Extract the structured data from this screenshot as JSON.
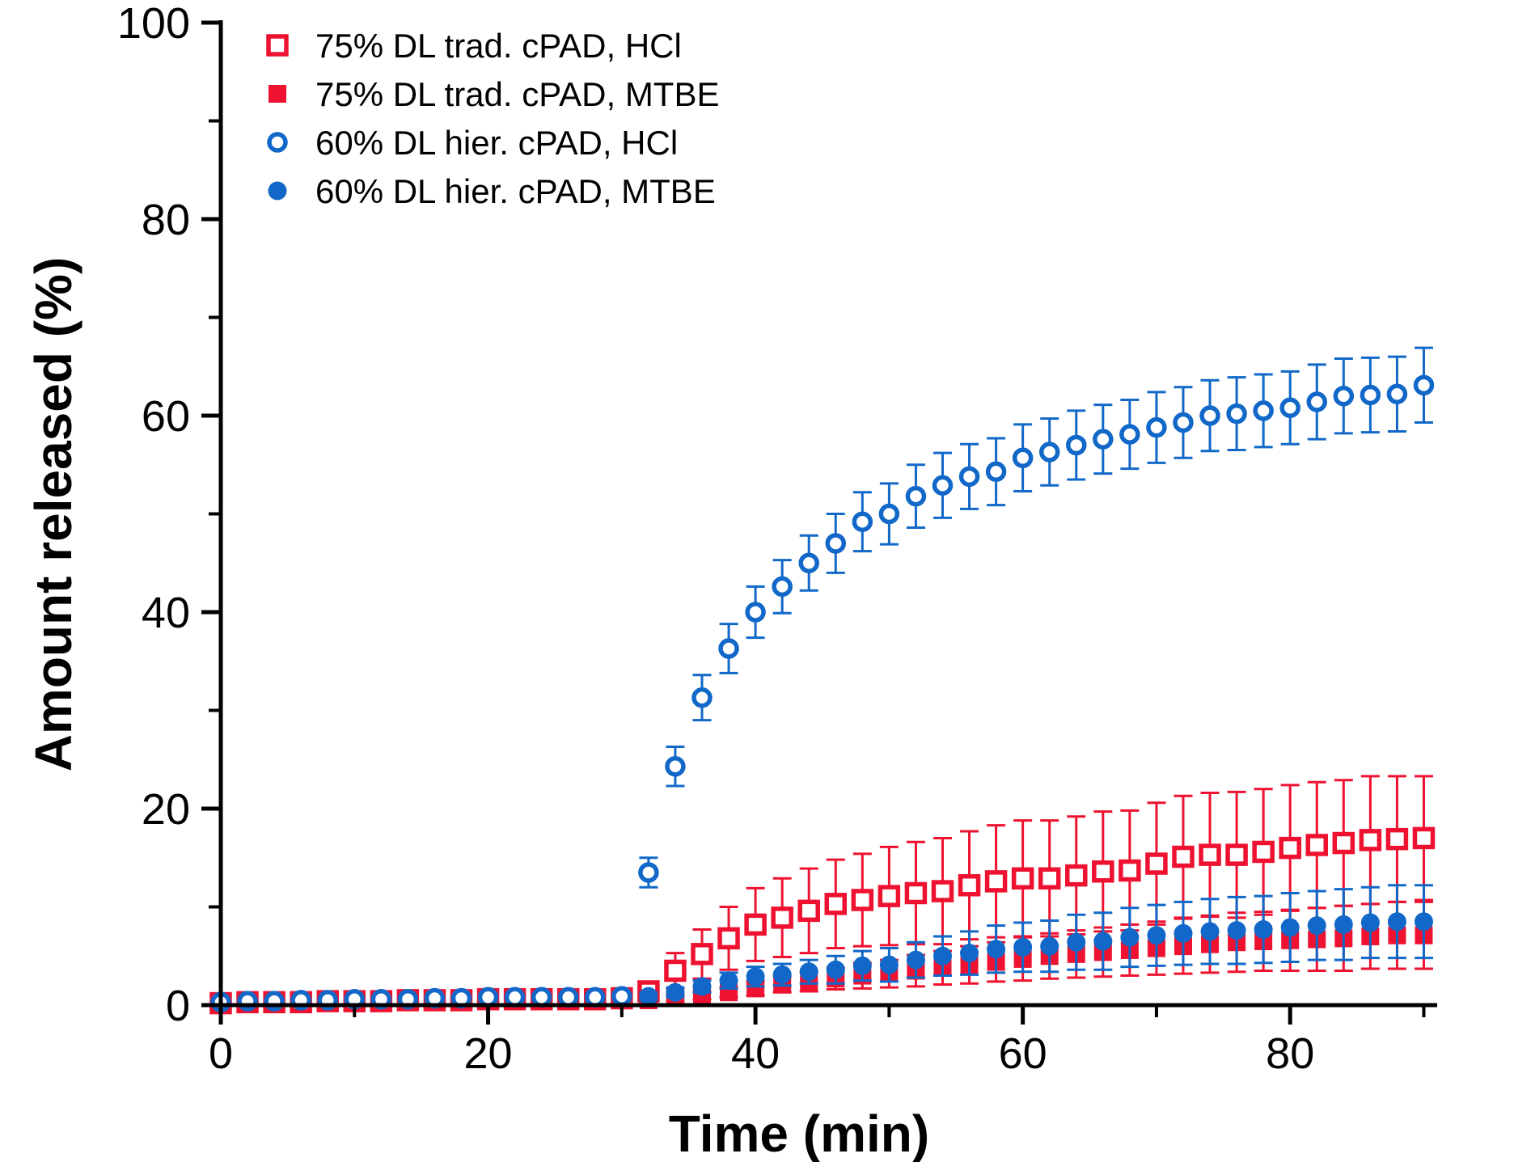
{
  "chart_data": {
    "type": "scatter",
    "title": "",
    "xlabel": "Time (min)",
    "ylabel": "Amount released (%)",
    "xlim": [
      0,
      91
    ],
    "ylim": [
      0,
      100
    ],
    "x_major_ticks": [
      0,
      20,
      40,
      60,
      80
    ],
    "x_minor_ticks": [
      10,
      30,
      50,
      70,
      90
    ],
    "y_major_ticks": [
      0,
      20,
      40,
      60,
      80,
      100
    ],
    "y_minor_ticks": [
      10,
      30,
      50,
      70,
      90
    ],
    "grid": false,
    "legend_position": "top-left-inside",
    "colors": {
      "red": "#ee1230",
      "blue": "#1168c8",
      "axis": "#000000"
    },
    "x": [
      0,
      2,
      4,
      6,
      8,
      10,
      12,
      14,
      16,
      18,
      20,
      22,
      24,
      26,
      28,
      30,
      32,
      34,
      36,
      38,
      40,
      42,
      44,
      46,
      48,
      50,
      52,
      54,
      56,
      58,
      60,
      62,
      64,
      66,
      68,
      70,
      72,
      74,
      76,
      78,
      80,
      82,
      84,
      86,
      88,
      90
    ],
    "series": [
      {
        "name": "75% DL trad. cPAD, HCl",
        "marker": "open-square",
        "color": "#ee1230",
        "values": [
          0.2,
          0.3,
          0.3,
          0.3,
          0.4,
          0.4,
          0.4,
          0.5,
          0.5,
          0.5,
          0.6,
          0.6,
          0.6,
          0.6,
          0.6,
          0.7,
          1.4,
          3.5,
          5.2,
          6.8,
          8.2,
          8.9,
          9.6,
          10.3,
          10.7,
          11.1,
          11.4,
          11.6,
          12.2,
          12.6,
          12.9,
          12.9,
          13.2,
          13.6,
          13.7,
          14.4,
          15.1,
          15.3,
          15.3,
          15.6,
          16.0,
          16.3,
          16.5,
          16.8,
          16.9,
          17.0
        ],
        "errors": [
          0.1,
          0.1,
          0.1,
          0.1,
          0.1,
          0.1,
          0.1,
          0.1,
          0.1,
          0.1,
          0.2,
          0.2,
          0.2,
          0.2,
          0.2,
          0.2,
          0.9,
          1.8,
          2.5,
          3.2,
          3.7,
          4.0,
          4.3,
          4.5,
          4.7,
          5.0,
          5.2,
          5.4,
          5.5,
          5.7,
          5.9,
          5.9,
          6.0,
          6.1,
          6.1,
          6.2,
          6.2,
          6.3,
          6.4,
          6.4,
          6.4,
          6.4,
          6.4,
          6.5,
          6.4,
          6.3
        ]
      },
      {
        "name": "75% DL trad. cPAD, MTBE",
        "marker": "filled-square",
        "color": "#ee1230",
        "values": [
          0.2,
          0.2,
          0.2,
          0.3,
          0.3,
          0.3,
          0.3,
          0.3,
          0.4,
          0.4,
          0.4,
          0.4,
          0.4,
          0.4,
          0.4,
          0.5,
          0.5,
          0.7,
          1.0,
          1.3,
          1.7,
          2.1,
          2.4,
          2.7,
          3.0,
          3.2,
          3.5,
          3.8,
          4.1,
          4.4,
          4.7,
          5.0,
          5.2,
          5.4,
          5.6,
          5.8,
          6.0,
          6.2,
          6.4,
          6.5,
          6.6,
          6.7,
          6.8,
          7.0,
          7.1,
          7.1
        ],
        "errors": [
          0.1,
          0.1,
          0.1,
          0.1,
          0.1,
          0.1,
          0.1,
          0.1,
          0.1,
          0.1,
          0.1,
          0.1,
          0.1,
          0.1,
          0.1,
          0.1,
          0.2,
          0.3,
          0.4,
          0.5,
          0.7,
          0.8,
          1.0,
          1.1,
          1.3,
          1.4,
          1.6,
          1.7,
          1.9,
          2.0,
          2.2,
          2.3,
          2.4,
          2.5,
          2.6,
          2.7,
          2.8,
          2.9,
          3.0,
          3.0,
          3.1,
          3.2,
          3.3,
          3.3,
          3.4,
          3.4
        ]
      },
      {
        "name": "60% DL hier. cPAD, HCl",
        "marker": "open-circle",
        "color": "#1168c8",
        "values": [
          0.3,
          0.4,
          0.4,
          0.5,
          0.5,
          0.6,
          0.6,
          0.6,
          0.7,
          0.7,
          0.8,
          0.8,
          0.8,
          0.8,
          0.8,
          0.9,
          13.5,
          24.3,
          31.3,
          36.3,
          40.0,
          42.6,
          45.0,
          47.0,
          49.2,
          50.0,
          51.8,
          52.9,
          53.8,
          54.3,
          55.7,
          56.3,
          57.0,
          57.6,
          58.1,
          58.8,
          59.3,
          60.0,
          60.2,
          60.5,
          60.8,
          61.4,
          62.0,
          62.1,
          62.2,
          63.1
        ],
        "errors": [
          0.2,
          0.2,
          0.2,
          0.2,
          0.2,
          0.2,
          0.2,
          0.2,
          0.2,
          0.2,
          0.2,
          0.2,
          0.2,
          0.2,
          0.2,
          0.2,
          1.5,
          2.0,
          2.3,
          2.5,
          2.6,
          2.7,
          2.8,
          3.0,
          3.0,
          3.1,
          3.2,
          3.3,
          3.3,
          3.4,
          3.4,
          3.4,
          3.5,
          3.5,
          3.5,
          3.6,
          3.6,
          3.6,
          3.7,
          3.7,
          3.7,
          3.8,
          3.8,
          3.8,
          3.8,
          3.8
        ]
      },
      {
        "name": "60% DL hier. cPAD, MTBE",
        "marker": "filled-circle",
        "color": "#1168c8",
        "values": [
          0.4,
          0.5,
          0.5,
          0.5,
          0.5,
          0.6,
          0.6,
          0.6,
          0.6,
          0.7,
          0.8,
          0.8,
          0.8,
          0.7,
          0.7,
          0.8,
          0.9,
          1.3,
          1.9,
          2.5,
          2.9,
          3.1,
          3.4,
          3.6,
          4.0,
          4.1,
          4.6,
          5.0,
          5.3,
          5.7,
          5.9,
          6.0,
          6.4,
          6.5,
          6.9,
          7.1,
          7.3,
          7.5,
          7.6,
          7.7,
          7.9,
          8.1,
          8.2,
          8.4,
          8.5,
          8.5
        ],
        "errors": [
          0.2,
          0.2,
          0.2,
          0.2,
          0.2,
          0.2,
          0.2,
          0.2,
          0.2,
          0.2,
          0.2,
          0.2,
          0.2,
          0.2,
          0.2,
          0.2,
          0.4,
          0.5,
          0.6,
          0.8,
          1.0,
          1.1,
          1.2,
          1.4,
          1.5,
          1.7,
          1.8,
          2.0,
          2.2,
          2.4,
          2.5,
          2.6,
          2.8,
          2.9,
          3.0,
          3.1,
          3.2,
          3.3,
          3.4,
          3.4,
          3.5,
          3.5,
          3.6,
          3.6,
          3.7,
          3.7
        ]
      }
    ],
    "draw_order": [
      1,
      0,
      3,
      2
    ],
    "legend": {
      "entries": [
        "75% DL trad. cPAD, HCl",
        "75% DL trad. cPAD, MTBE",
        "60% DL hier. cPAD, HCl",
        "60% DL hier. cPAD, MTBE"
      ]
    }
  },
  "layout_text": {
    "xlabel": "Time (min)",
    "ylabel": "Amount released (%)"
  }
}
